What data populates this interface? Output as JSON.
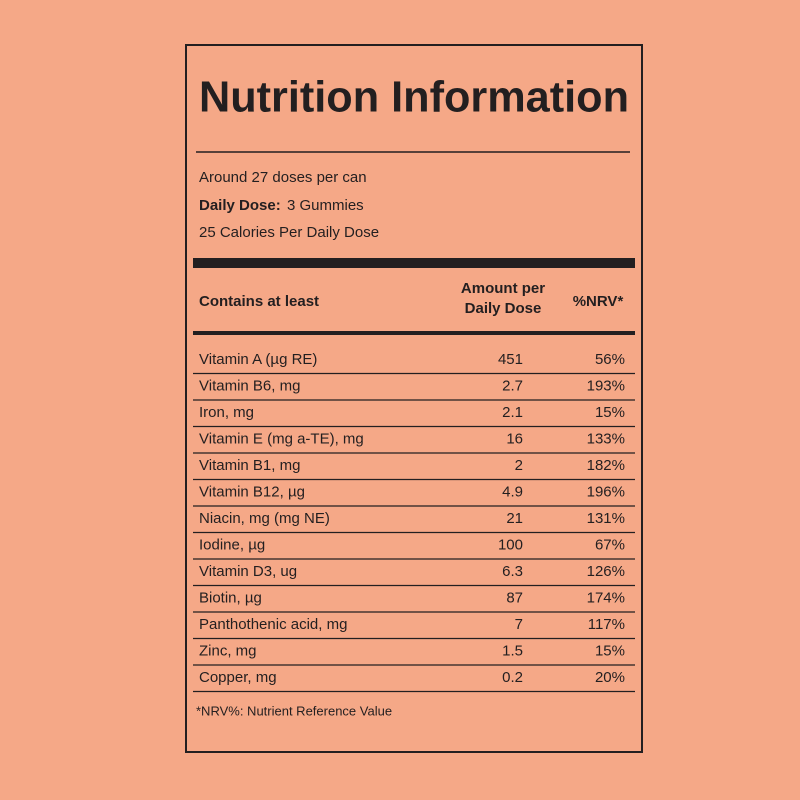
{
  "header": {
    "title": "Nutrition Information"
  },
  "info": {
    "doses": "Around 27 doses per can",
    "daily_dose_label": "Daily Dose:",
    "daily_dose_value": "3 Gummies",
    "calories": "25 Calories Per Daily Dose"
  },
  "table": {
    "columns": [
      "Contains at least",
      "Amount per",
      "Daily Dose",
      "%NRV*"
    ],
    "rows": [
      [
        "Vitamin A  (µg RE)",
        "451",
        "56%"
      ],
      [
        "Vitamin B6, mg",
        "2.7",
        "193%"
      ],
      [
        "Iron, mg",
        "2.1",
        "15%"
      ],
      [
        "Vitamin E (mg a-TE), mg",
        "16",
        "133%"
      ],
      [
        "Vitamin B1, mg",
        "2",
        "182%"
      ],
      [
        "Vitamin B12, µg",
        "4.9",
        "196%"
      ],
      [
        "Niacin, mg (mg NE)",
        "21",
        "131%"
      ],
      [
        "Iodine, µg",
        "100",
        "67%"
      ],
      [
        "Vitamin D3, ug",
        "6.3",
        "126%"
      ],
      [
        "Biotin, µg",
        "87",
        "174%"
      ],
      [
        "Panthothenic acid, mg",
        "7",
        "117%"
      ],
      [
        "Zinc, mg",
        "1.5",
        "15%"
      ],
      [
        "Copper, mg",
        "0.2",
        "20%"
      ]
    ]
  },
  "footnote": "*NRV%: Nutrient Reference Value"
}
